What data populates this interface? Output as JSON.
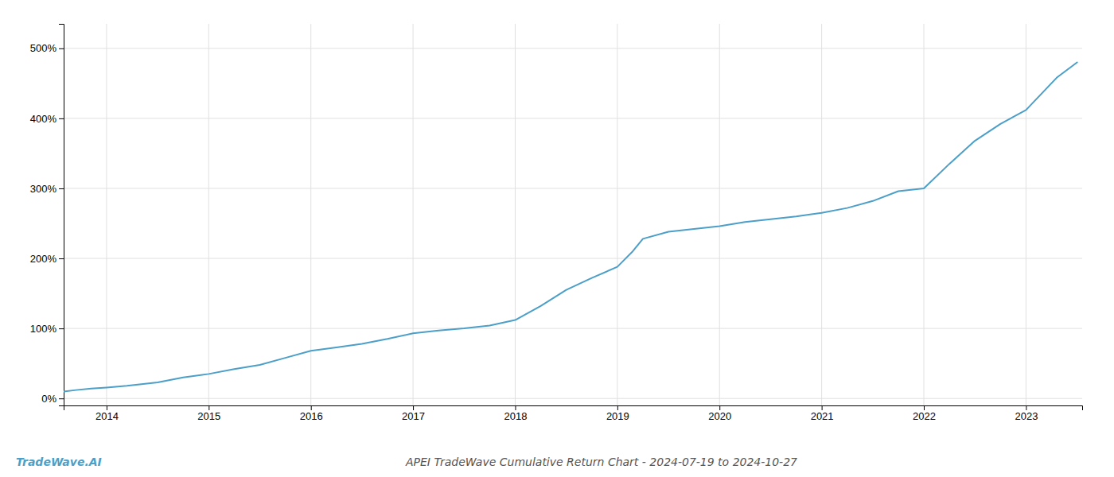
{
  "chart_data": {
    "type": "line",
    "title": "APEI TradeWave Cumulative Return Chart - 2024-07-19 to 2024-10-27",
    "annotations": [
      "TradeWave.AI"
    ],
    "color": "#4c9fc8",
    "grid": true,
    "xlim": [
      2013.58,
      2023.55
    ],
    "ylim": [
      -0.1,
      5.35
    ],
    "xticks": [
      2014,
      2015,
      2016,
      2017,
      2018,
      2019,
      2020,
      2021,
      2022,
      2023
    ],
    "yticks": [
      {
        "value": 0,
        "label": "0%"
      },
      {
        "value": 1,
        "label": "100%"
      },
      {
        "value": 2,
        "label": "200%"
      },
      {
        "value": 3,
        "label": "300%"
      },
      {
        "value": 4,
        "label": "400%"
      },
      {
        "value": 5,
        "label": "500%"
      }
    ],
    "x": [
      2013.58,
      2013.7,
      2013.85,
      2014.0,
      2014.2,
      2014.5,
      2014.75,
      2015.0,
      2015.25,
      2015.5,
      2015.75,
      2016.0,
      2016.25,
      2016.5,
      2016.75,
      2017.0,
      2017.25,
      2017.5,
      2017.75,
      2018.0,
      2018.25,
      2018.5,
      2018.75,
      2019.0,
      2019.15,
      2019.25,
      2019.5,
      2019.75,
      2020.0,
      2020.25,
      2020.5,
      2020.75,
      2021.0,
      2021.25,
      2021.5,
      2021.75,
      2022.0,
      2022.25,
      2022.5,
      2022.75,
      2023.0,
      2023.3,
      2023.5
    ],
    "values": [
      0.1,
      0.12,
      0.14,
      0.155,
      0.18,
      0.23,
      0.3,
      0.35,
      0.42,
      0.48,
      0.58,
      0.68,
      0.73,
      0.78,
      0.85,
      0.93,
      0.97,
      1.0,
      1.04,
      1.12,
      1.32,
      1.55,
      1.72,
      1.88,
      2.1,
      2.28,
      2.38,
      2.42,
      2.46,
      2.52,
      2.56,
      2.6,
      2.65,
      2.72,
      2.82,
      2.96,
      3.0,
      3.35,
      3.68,
      3.92,
      4.12,
      4.58,
      4.8
    ]
  }
}
